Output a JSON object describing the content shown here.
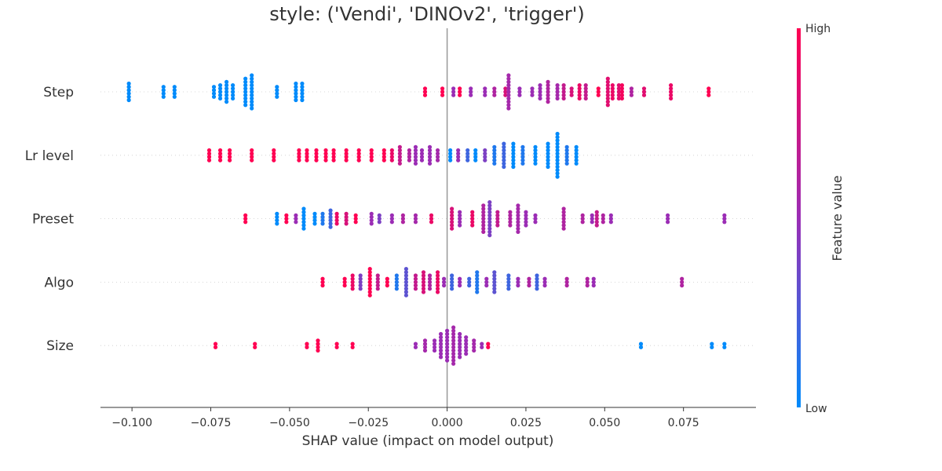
{
  "chart_data": {
    "type": "scatter",
    "subtype": "shap-beeswarm",
    "title": "style: ('Vendi', 'DINOv2', 'trigger')",
    "xlabel": "SHAP value (impact on model output)",
    "ylabel": "",
    "xlim": [
      -0.11,
      0.098
    ],
    "xticks": [
      -0.1,
      -0.075,
      -0.05,
      -0.025,
      0.0,
      0.025,
      0.05,
      0.075
    ],
    "xtick_labels": [
      "−0.100",
      "−0.075",
      "−0.050",
      "−0.025",
      "0.000",
      "0.025",
      "0.050",
      "0.075"
    ],
    "features": [
      "Step",
      "Lr level",
      "Preset",
      "Algo",
      "Size"
    ],
    "colorbar": {
      "label": "Feature value",
      "high_label": "High",
      "low_label": "Low",
      "low_color": "#008bfb",
      "mid_color": "#9b2db5",
      "high_color": "#ff0052"
    },
    "zero_line": 0.0,
    "series": [
      {
        "feature": "Step",
        "clusters": [
          {
            "x": -0.101,
            "n": 6,
            "v": 0.0
          },
          {
            "x": -0.09,
            "n": 4,
            "v": 0.0
          },
          {
            "x": -0.0865,
            "n": 4,
            "v": 0.0
          },
          {
            "x": -0.074,
            "n": 4,
            "v": 0.0
          },
          {
            "x": -0.072,
            "n": 5,
            "v": 0.0
          },
          {
            "x": -0.07,
            "n": 7,
            "v": 0.0
          },
          {
            "x": -0.068,
            "n": 5,
            "v": 0.0
          },
          {
            "x": -0.064,
            "n": 9,
            "v": 0.0
          },
          {
            "x": -0.062,
            "n": 11,
            "v": 0.0
          },
          {
            "x": -0.054,
            "n": 4,
            "v": 0.0
          },
          {
            "x": -0.048,
            "n": 6,
            "v": 0.0
          },
          {
            "x": -0.046,
            "n": 6,
            "v": 0.0
          },
          {
            "x": -0.007,
            "n": 3,
            "v": 1.0
          },
          {
            "x": -0.0015,
            "n": 3,
            "v": 1.0
          },
          {
            "x": 0.002,
            "n": 3,
            "v": 0.5
          },
          {
            "x": 0.004,
            "n": 3,
            "v": 1.0
          },
          {
            "x": 0.0075,
            "n": 3,
            "v": 0.5
          },
          {
            "x": 0.012,
            "n": 3,
            "v": 0.5
          },
          {
            "x": 0.015,
            "n": 3,
            "v": 0.6
          },
          {
            "x": 0.0185,
            "n": 3,
            "v": 0.8
          },
          {
            "x": 0.0195,
            "n": 11,
            "v": 0.55
          },
          {
            "x": 0.023,
            "n": 3,
            "v": 0.5
          },
          {
            "x": 0.027,
            "n": 3,
            "v": 0.5
          },
          {
            "x": 0.0295,
            "n": 5,
            "v": 0.5
          },
          {
            "x": 0.032,
            "n": 7,
            "v": 0.6
          },
          {
            "x": 0.035,
            "n": 5,
            "v": 0.55
          },
          {
            "x": 0.037,
            "n": 5,
            "v": 0.7
          },
          {
            "x": 0.0395,
            "n": 3,
            "v": 0.8
          },
          {
            "x": 0.042,
            "n": 5,
            "v": 0.9
          },
          {
            "x": 0.044,
            "n": 5,
            "v": 0.7
          },
          {
            "x": 0.048,
            "n": 3,
            "v": 1.0
          },
          {
            "x": 0.051,
            "n": 9,
            "v": 0.85
          },
          {
            "x": 0.0525,
            "n": 5,
            "v": 0.9
          },
          {
            "x": 0.0545,
            "n": 5,
            "v": 0.85
          },
          {
            "x": 0.0555,
            "n": 5,
            "v": 0.95
          },
          {
            "x": 0.0585,
            "n": 3,
            "v": 0.6
          },
          {
            "x": 0.0625,
            "n": 3,
            "v": 0.85
          },
          {
            "x": 0.071,
            "n": 5,
            "v": 0.9
          },
          {
            "x": 0.083,
            "n": 3,
            "v": 1.0
          }
        ]
      },
      {
        "feature": "Lr level",
        "clusters": [
          {
            "x": -0.0755,
            "n": 4,
            "v": 1.0
          },
          {
            "x": -0.072,
            "n": 4,
            "v": 1.0
          },
          {
            "x": -0.069,
            "n": 4,
            "v": 1.0
          },
          {
            "x": -0.062,
            "n": 4,
            "v": 1.0
          },
          {
            "x": -0.055,
            "n": 4,
            "v": 1.0
          },
          {
            "x": -0.047,
            "n": 4,
            "v": 1.0
          },
          {
            "x": -0.0445,
            "n": 4,
            "v": 1.0
          },
          {
            "x": -0.0415,
            "n": 4,
            "v": 1.0
          },
          {
            "x": -0.0385,
            "n": 4,
            "v": 1.0
          },
          {
            "x": -0.036,
            "n": 4,
            "v": 1.0
          },
          {
            "x": -0.032,
            "n": 4,
            "v": 1.0
          },
          {
            "x": -0.028,
            "n": 4,
            "v": 1.0
          },
          {
            "x": -0.024,
            "n": 4,
            "v": 1.0
          },
          {
            "x": -0.02,
            "n": 4,
            "v": 1.0
          },
          {
            "x": -0.0175,
            "n": 4,
            "v": 0.9
          },
          {
            "x": -0.015,
            "n": 6,
            "v": 0.7
          },
          {
            "x": -0.012,
            "n": 4,
            "v": 0.6
          },
          {
            "x": -0.01,
            "n": 6,
            "v": 0.5
          },
          {
            "x": -0.008,
            "n": 4,
            "v": 0.5
          },
          {
            "x": -0.0055,
            "n": 6,
            "v": 0.5
          },
          {
            "x": -0.003,
            "n": 4,
            "v": 0.55
          },
          {
            "x": 0.001,
            "n": 4,
            "v": 0.0
          },
          {
            "x": 0.0035,
            "n": 4,
            "v": 0.5
          },
          {
            "x": 0.0065,
            "n": 4,
            "v": 0.2
          },
          {
            "x": 0.009,
            "n": 4,
            "v": 0.0
          },
          {
            "x": 0.012,
            "n": 4,
            "v": 0.4
          },
          {
            "x": 0.015,
            "n": 6,
            "v": 0.1
          },
          {
            "x": 0.018,
            "n": 8,
            "v": 0.2
          },
          {
            "x": 0.021,
            "n": 8,
            "v": 0.0
          },
          {
            "x": 0.024,
            "n": 6,
            "v": 0.1
          },
          {
            "x": 0.028,
            "n": 6,
            "v": 0.0
          },
          {
            "x": 0.032,
            "n": 8,
            "v": 0.0
          },
          {
            "x": 0.035,
            "n": 14,
            "v": 0.0
          },
          {
            "x": 0.038,
            "n": 6,
            "v": 0.1
          },
          {
            "x": 0.041,
            "n": 6,
            "v": 0.0
          }
        ]
      },
      {
        "feature": "Preset",
        "clusters": [
          {
            "x": -0.064,
            "n": 3,
            "v": 1.0
          },
          {
            "x": -0.054,
            "n": 4,
            "v": 0.0
          },
          {
            "x": -0.051,
            "n": 3,
            "v": 1.0
          },
          {
            "x": -0.048,
            "n": 3,
            "v": 0.5
          },
          {
            "x": -0.0455,
            "n": 7,
            "v": 0.0
          },
          {
            "x": -0.042,
            "n": 4,
            "v": 0.0
          },
          {
            "x": -0.0395,
            "n": 4,
            "v": 0.1
          },
          {
            "x": -0.037,
            "n": 6,
            "v": 0.2
          },
          {
            "x": -0.035,
            "n": 4,
            "v": 0.9
          },
          {
            "x": -0.032,
            "n": 4,
            "v": 0.8
          },
          {
            "x": -0.029,
            "n": 3,
            "v": 1.0
          },
          {
            "x": -0.024,
            "n": 4,
            "v": 0.5
          },
          {
            "x": -0.0215,
            "n": 3,
            "v": 0.4
          },
          {
            "x": -0.0175,
            "n": 3,
            "v": 0.5
          },
          {
            "x": -0.014,
            "n": 3,
            "v": 0.6
          },
          {
            "x": -0.01,
            "n": 3,
            "v": 0.55
          },
          {
            "x": -0.005,
            "n": 3,
            "v": 0.9
          },
          {
            "x": 0.0015,
            "n": 7,
            "v": 0.8
          },
          {
            "x": 0.004,
            "n": 5,
            "v": 0.5
          },
          {
            "x": 0.008,
            "n": 5,
            "v": 0.9
          },
          {
            "x": 0.0115,
            "n": 9,
            "v": 0.6
          },
          {
            "x": 0.0135,
            "n": 11,
            "v": 0.4
          },
          {
            "x": 0.016,
            "n": 5,
            "v": 0.7
          },
          {
            "x": 0.02,
            "n": 5,
            "v": 0.6
          },
          {
            "x": 0.0225,
            "n": 9,
            "v": 0.55
          },
          {
            "x": 0.025,
            "n": 5,
            "v": 0.5
          },
          {
            "x": 0.028,
            "n": 3,
            "v": 0.5
          },
          {
            "x": 0.037,
            "n": 7,
            "v": 0.6
          },
          {
            "x": 0.043,
            "n": 3,
            "v": 0.6
          },
          {
            "x": 0.046,
            "n": 3,
            "v": 0.5
          },
          {
            "x": 0.0475,
            "n": 5,
            "v": 0.7
          },
          {
            "x": 0.0495,
            "n": 3,
            "v": 0.6
          },
          {
            "x": 0.052,
            "n": 3,
            "v": 0.5
          },
          {
            "x": 0.07,
            "n": 3,
            "v": 0.5
          },
          {
            "x": 0.088,
            "n": 3,
            "v": 0.5
          }
        ]
      },
      {
        "feature": "Algo",
        "clusters": [
          {
            "x": -0.0395,
            "n": 3,
            "v": 1.0
          },
          {
            "x": -0.0325,
            "n": 3,
            "v": 1.0
          },
          {
            "x": -0.03,
            "n": 5,
            "v": 0.9
          },
          {
            "x": -0.0275,
            "n": 5,
            "v": 0.4
          },
          {
            "x": -0.0245,
            "n": 9,
            "v": 1.0
          },
          {
            "x": -0.022,
            "n": 5,
            "v": 0.7
          },
          {
            "x": -0.019,
            "n": 3,
            "v": 1.0
          },
          {
            "x": -0.016,
            "n": 5,
            "v": 0.1
          },
          {
            "x": -0.013,
            "n": 9,
            "v": 0.3
          },
          {
            "x": -0.01,
            "n": 5,
            "v": 0.7
          },
          {
            "x": -0.0075,
            "n": 7,
            "v": 0.8
          },
          {
            "x": -0.0055,
            "n": 5,
            "v": 0.6
          },
          {
            "x": -0.003,
            "n": 7,
            "v": 0.9
          },
          {
            "x": -0.001,
            "n": 3,
            "v": 0.5
          },
          {
            "x": 0.0015,
            "n": 5,
            "v": 0.2
          },
          {
            "x": 0.004,
            "n": 3,
            "v": 0.5
          },
          {
            "x": 0.007,
            "n": 3,
            "v": 0.2
          },
          {
            "x": 0.0095,
            "n": 7,
            "v": 0.1
          },
          {
            "x": 0.0125,
            "n": 3,
            "v": 0.5
          },
          {
            "x": 0.015,
            "n": 7,
            "v": 0.3
          },
          {
            "x": 0.0195,
            "n": 5,
            "v": 0.2
          },
          {
            "x": 0.0225,
            "n": 3,
            "v": 0.5
          },
          {
            "x": 0.026,
            "n": 3,
            "v": 0.6
          },
          {
            "x": 0.0285,
            "n": 5,
            "v": 0.2
          },
          {
            "x": 0.031,
            "n": 3,
            "v": 0.5
          },
          {
            "x": 0.038,
            "n": 3,
            "v": 0.6
          },
          {
            "x": 0.0445,
            "n": 3,
            "v": 0.6
          },
          {
            "x": 0.0465,
            "n": 3,
            "v": 0.5
          },
          {
            "x": 0.0745,
            "n": 3,
            "v": 0.6
          }
        ]
      },
      {
        "feature": "Size",
        "clusters": [
          {
            "x": -0.0735,
            "n": 2,
            "v": 1.0
          },
          {
            "x": -0.061,
            "n": 2,
            "v": 1.0
          },
          {
            "x": -0.0445,
            "n": 2,
            "v": 1.0
          },
          {
            "x": -0.041,
            "n": 4,
            "v": 1.0
          },
          {
            "x": -0.035,
            "n": 2,
            "v": 1.0
          },
          {
            "x": -0.03,
            "n": 2,
            "v": 1.0
          },
          {
            "x": -0.01,
            "n": 2,
            "v": 0.5
          },
          {
            "x": -0.007,
            "n": 4,
            "v": 0.55
          },
          {
            "x": -0.004,
            "n": 4,
            "v": 0.5
          },
          {
            "x": -0.002,
            "n": 8,
            "v": 0.5
          },
          {
            "x": 0.0,
            "n": 10,
            "v": 0.5
          },
          {
            "x": 0.002,
            "n": 12,
            "v": 0.55
          },
          {
            "x": 0.004,
            "n": 8,
            "v": 0.5
          },
          {
            "x": 0.006,
            "n": 6,
            "v": 0.5
          },
          {
            "x": 0.0085,
            "n": 4,
            "v": 0.55
          },
          {
            "x": 0.011,
            "n": 2,
            "v": 0.5
          },
          {
            "x": 0.013,
            "n": 2,
            "v": 1.0
          },
          {
            "x": 0.0615,
            "n": 2,
            "v": 0.0
          },
          {
            "x": 0.084,
            "n": 2,
            "v": 0.0
          },
          {
            "x": 0.088,
            "n": 2,
            "v": 0.0
          }
        ]
      }
    ]
  }
}
